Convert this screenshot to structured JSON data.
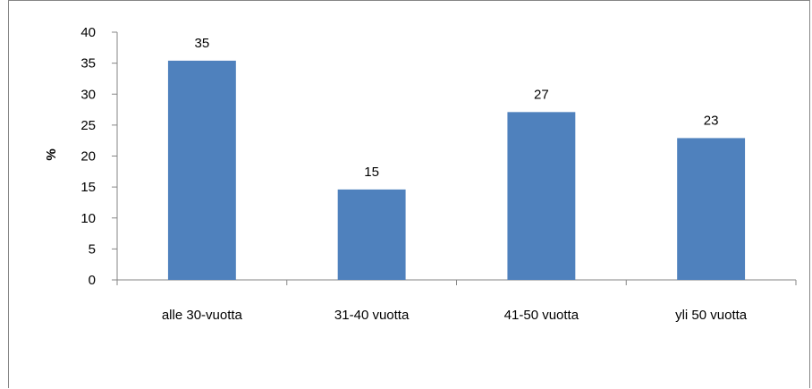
{
  "chart_data": {
    "type": "bar",
    "categories": [
      "alle 30-vuotta",
      "31-40 vuotta",
      "41-50 vuotta",
      "yli 50 vuotta"
    ],
    "values": [
      35.4,
      14.6,
      27.1,
      22.9
    ],
    "data_labels": [
      "35",
      "15",
      "27",
      "23"
    ],
    "ylabel": "%",
    "xlabel": "",
    "ylim": [
      0,
      40
    ],
    "yticks": [
      0,
      5,
      10,
      15,
      20,
      25,
      30,
      35,
      40
    ],
    "bar_color": "#4F81BD",
    "grid": false,
    "legend": "none"
  }
}
